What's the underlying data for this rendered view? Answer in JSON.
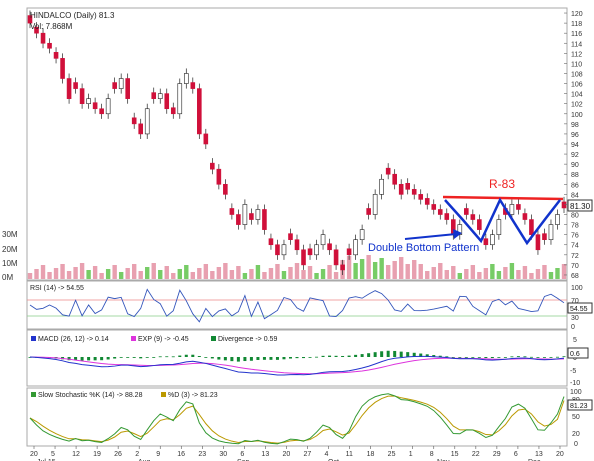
{
  "header": {
    "symbol_line": "HINDALCO (Daily) 81.3",
    "volume_line": "Vol: 7.868M"
  },
  "price_axis": {
    "ticks": [
      120,
      118,
      116,
      114,
      112,
      110,
      108,
      106,
      104,
      102,
      100,
      98,
      96,
      94,
      92,
      90,
      88,
      86,
      84,
      82,
      80,
      78,
      76,
      74,
      72,
      70,
      68
    ],
    "last_price_label": "81.30"
  },
  "volume_axis": {
    "ticks": [
      "30M",
      "20M",
      "10M",
      "0M"
    ]
  },
  "annotations": {
    "resistance_label": "R-83",
    "pattern_label": "Double Bottom Pattern"
  },
  "rsi_panel": {
    "legend": "RSI (14) -> 54.55",
    "ticks": [
      "100",
      "70",
      "30",
      "0"
    ],
    "current_label": "54.55"
  },
  "macd_panel": {
    "legend_macd": "MACD (26, 12) -> 0.14",
    "legend_exp": "EXP (9) -> -0.45",
    "legend_div": "Divergence -> 0.59",
    "ticks": [
      "5",
      "0",
      "-5",
      "-10"
    ],
    "current_label": "0.6"
  },
  "stoch_panel": {
    "legend_k": "Slow Stochastic %K (14) -> 88.28",
    "legend_d": "%D (3) -> 81.23",
    "ticks": [
      "100",
      "80",
      "50",
      "20",
      "0"
    ],
    "current_label": "81.23"
  },
  "x_axis": {
    "day_ticks": [
      "20",
      "5",
      "12",
      "19",
      "26",
      "2",
      "9",
      "16",
      "23",
      "30",
      "6",
      "13",
      "20",
      "27",
      "4",
      "11",
      "18",
      "25",
      "1",
      "8",
      "15",
      "22",
      "29",
      "6",
      "13",
      "20"
    ],
    "month_labels": [
      "Jul 15",
      "Aug",
      "Sep",
      "Oct",
      "Nov",
      "Dec"
    ]
  },
  "colors": {
    "up_candle": "#ffffff",
    "down_candle": "#d0103a",
    "volume_up": "#77cc66",
    "volume_down": "#e8a0b0",
    "resistance_line": "#ee2222",
    "pattern_line": "#1133cc",
    "rsi_line": "#3355bb",
    "macd_line": "#2233cc",
    "exp_line": "#dd33dd",
    "divergence": "#118833",
    "stoch_k": "#339933",
    "stoch_d": "#bb9900"
  },
  "chart_data": {
    "type": "candlestick",
    "title": "HINDALCO (Daily) 81.3",
    "x_start_label": "20",
    "x_end_label": "20",
    "ylim": [
      67,
      121
    ],
    "close_approx": [
      118,
      116,
      114,
      113,
      111,
      107,
      103,
      105,
      102,
      103,
      101,
      100,
      103,
      105,
      107,
      103,
      98,
      96,
      101,
      103,
      104,
      101,
      100,
      106,
      108,
      105,
      96,
      94,
      89,
      86,
      84,
      80,
      78,
      82,
      79,
      81,
      77,
      74,
      72,
      74,
      75,
      73,
      70,
      72,
      74,
      76,
      73,
      70,
      69,
      72,
      75,
      77,
      80,
      84,
      87,
      88,
      86,
      84,
      85,
      84,
      83,
      82,
      81,
      80,
      79,
      76,
      78,
      80,
      79,
      77,
      74,
      76,
      79,
      80,
      82,
      81,
      79,
      76,
      73,
      75,
      78,
      80,
      81.3
    ],
    "resistance": 83,
    "pattern": "Double Bottom",
    "rsi_last": 54.55,
    "macd_last": 0.14,
    "exp_last": -0.45,
    "divergence_last": 0.59,
    "stoch_k_last": 88.28,
    "stoch_d_last": 81.23
  }
}
